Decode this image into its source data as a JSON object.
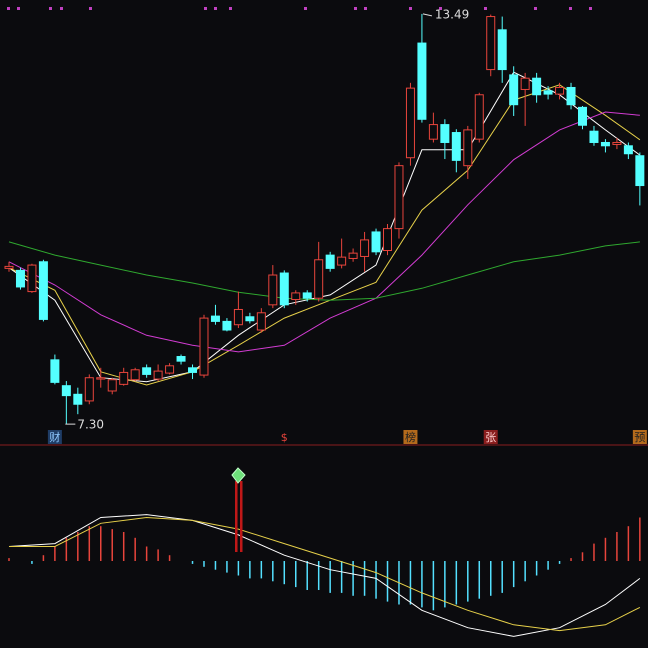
{
  "chart_data": [
    {
      "type": "candlestick",
      "up_color": "#e8453c",
      "down_color": "#54ffff",
      "ylim": [
        7.0,
        13.7
      ],
      "open": [
        9.65,
        9.62,
        9.3,
        9.75,
        8.27,
        7.88,
        7.75,
        7.65,
        7.98,
        7.8,
        7.9,
        7.97,
        8.15,
        7.98,
        8.07,
        8.32,
        8.15,
        8.04,
        8.93,
        8.85,
        8.8,
        8.92,
        8.72,
        9.1,
        9.58,
        9.18,
        9.28,
        9.2,
        9.85,
        9.7,
        9.8,
        9.83,
        10.2,
        9.92,
        10.25,
        11.32,
        13.05,
        11.6,
        11.82,
        11.7,
        11.2,
        11.6,
        12.65,
        13.25,
        12.57,
        12.35,
        12.52,
        12.33,
        12.28,
        12.38,
        12.08,
        11.72,
        11.55,
        11.52,
        11.5,
        11.35
      ],
      "high": [
        9.75,
        9.66,
        9.72,
        9.78,
        8.35,
        7.95,
        7.85,
        8.05,
        8.15,
        8.0,
        8.15,
        8.15,
        8.2,
        8.2,
        8.22,
        8.35,
        8.2,
        8.95,
        9.1,
        8.9,
        9.3,
        8.98,
        9.05,
        9.7,
        9.62,
        9.32,
        9.32,
        10.05,
        9.9,
        10.1,
        9.95,
        10.2,
        10.25,
        10.32,
        11.25,
        12.45,
        13.49,
        12.0,
        11.9,
        11.75,
        11.8,
        12.3,
        13.48,
        13.45,
        12.7,
        12.6,
        12.6,
        12.4,
        12.45,
        12.45,
        12.1,
        11.8,
        11.6,
        11.62,
        11.55,
        11.4
      ],
      "low": [
        9.6,
        9.33,
        9.28,
        8.85,
        7.9,
        7.3,
        7.45,
        7.6,
        7.85,
        7.75,
        7.88,
        7.95,
        8.0,
        7.95,
        8.05,
        8.2,
        7.98,
        8.0,
        8.8,
        8.7,
        8.75,
        8.82,
        8.68,
        9.05,
        9.05,
        9.1,
        9.15,
        9.15,
        9.6,
        9.65,
        9.75,
        9.6,
        9.85,
        9.85,
        10.1,
        11.2,
        11.85,
        11.55,
        11.3,
        11.1,
        11.0,
        11.55,
        12.55,
        12.45,
        11.95,
        11.8,
        12.15,
        12.2,
        12.2,
        12.05,
        11.75,
        11.5,
        11.4,
        11.45,
        11.3,
        10.6
      ],
      "close": [
        9.68,
        9.37,
        9.7,
        8.88,
        7.93,
        7.73,
        7.6,
        8.0,
        8.0,
        7.97,
        8.08,
        8.12,
        8.05,
        8.1,
        8.18,
        8.25,
        8.08,
        8.9,
        8.85,
        8.72,
        9.03,
        8.86,
        8.98,
        9.55,
        9.1,
        9.28,
        9.2,
        9.78,
        9.65,
        9.82,
        9.88,
        10.08,
        9.9,
        10.25,
        11.2,
        12.37,
        11.9,
        11.82,
        11.55,
        11.28,
        11.74,
        12.27,
        13.45,
        12.65,
        12.12,
        12.52,
        12.27,
        12.28,
        12.38,
        12.12,
        11.81,
        11.55,
        11.5,
        11.55,
        11.38,
        10.9
      ],
      "line_x": [
        0,
        4,
        8,
        12,
        16,
        20,
        24,
        28,
        32,
        36,
        40,
        44,
        48,
        52,
        55
      ],
      "lines": [
        {
          "color": "#ffffff",
          "values": [
            9.66,
            9.17,
            8.0,
            7.94,
            8.09,
            8.64,
            9.1,
            9.25,
            9.7,
            11.44,
            11.44,
            12.61,
            12.27,
            11.74,
            11.36
          ]
        },
        {
          "color": "#e6d04a",
          "values": [
            9.66,
            9.32,
            8.09,
            7.89,
            8.09,
            8.49,
            8.9,
            9.17,
            9.44,
            10.53,
            11.13,
            12.19,
            12.42,
            11.96,
            11.59
          ]
        },
        {
          "color": "#d23cd2",
          "values": [
            9.75,
            9.4,
            8.95,
            8.64,
            8.49,
            8.39,
            8.49,
            8.9,
            9.2,
            9.85,
            10.61,
            11.29,
            11.74,
            12.01,
            11.96
          ]
        },
        {
          "color": "#2fa82f",
          "values": [
            10.05,
            9.85,
            9.7,
            9.55,
            9.43,
            9.29,
            9.2,
            9.17,
            9.2,
            9.35,
            9.55,
            9.75,
            9.85,
            9.99,
            10.05
          ]
        }
      ],
      "extreme_labels": [
        {
          "value": 13.49,
          "label": "13.49"
        },
        {
          "value": 7.3,
          "label": "7.30"
        }
      ],
      "events": [
        {
          "index": 4,
          "label": "财"
        },
        {
          "index": 24,
          "label": "$"
        },
        {
          "index": 35,
          "label": "榜"
        },
        {
          "index": 42,
          "label": "张"
        },
        {
          "index": 55,
          "label": "预"
        }
      ]
    },
    {
      "type": "macd",
      "up_color": "#e8453c",
      "down_color": "#54e0ff",
      "ylim": [
        -0.3,
        0.4
      ],
      "values": [
        0.01,
        0,
        -0.01,
        0.02,
        0.05,
        0.08,
        0.1,
        0.12,
        0.12,
        0.11,
        0.1,
        0.08,
        0.05,
        0.04,
        0.02,
        0,
        -0.01,
        -0.02,
        -0.03,
        -0.04,
        -0.05,
        -0.06,
        -0.06,
        -0.07,
        -0.08,
        -0.09,
        -0.1,
        -0.1,
        -0.11,
        -0.11,
        -0.12,
        -0.12,
        -0.13,
        -0.14,
        -0.15,
        -0.15,
        -0.16,
        -0.17,
        -0.16,
        -0.15,
        -0.14,
        -0.13,
        -0.12,
        -0.11,
        -0.09,
        -0.07,
        -0.05,
        -0.03,
        -0.01,
        0.01,
        0.03,
        0.06,
        0.08,
        0.1,
        0.12,
        0.15
      ],
      "line_x": [
        0,
        4,
        8,
        12,
        16,
        20,
        24,
        28,
        32,
        36,
        40,
        44,
        48,
        52,
        55
      ],
      "lines": [
        {
          "color": "#ffffff",
          "values": [
            0.05,
            0.06,
            0.15,
            0.16,
            0.14,
            0.09,
            0.02,
            -0.03,
            -0.06,
            -0.17,
            -0.23,
            -0.26,
            -0.23,
            -0.15,
            -0.06
          ]
        },
        {
          "color": "#e6d04a",
          "values": [
            0.05,
            0.05,
            0.13,
            0.15,
            0.14,
            0.11,
            0.06,
            0.01,
            -0.04,
            -0.11,
            -0.17,
            -0.22,
            -0.24,
            -0.22,
            -0.16
          ]
        }
      ]
    }
  ]
}
